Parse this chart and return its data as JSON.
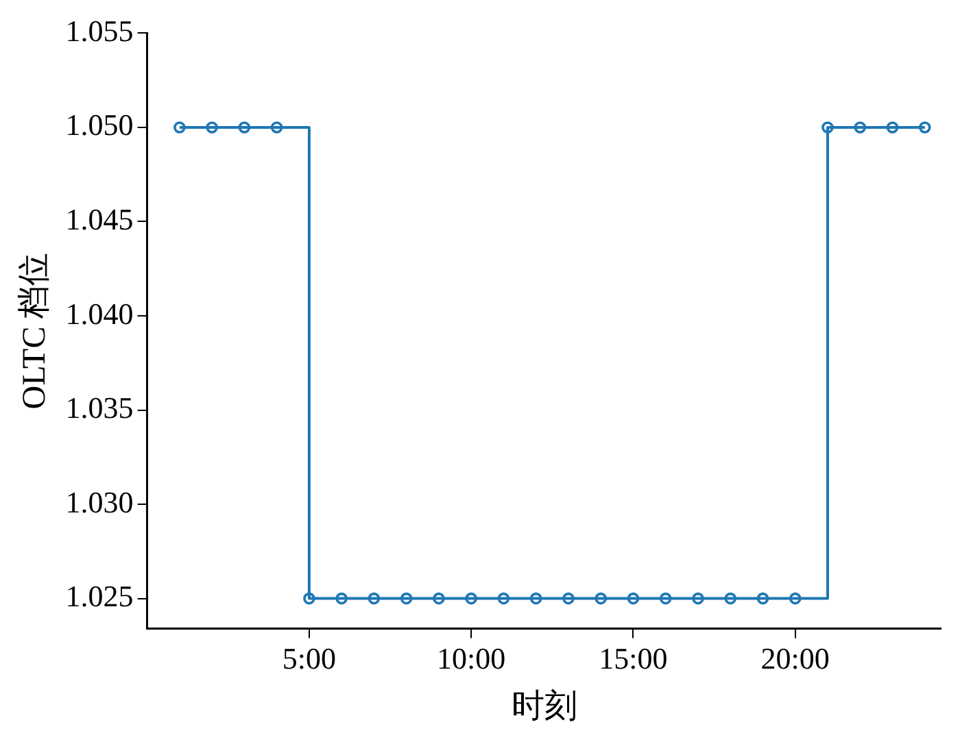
{
  "chart_data": {
    "type": "step",
    "xlabel": "时刻",
    "ylabel": "OLTC 档位",
    "x": [
      1,
      2,
      3,
      4,
      5,
      6,
      7,
      8,
      9,
      10,
      11,
      12,
      13,
      14,
      15,
      16,
      17,
      18,
      19,
      20,
      21,
      22,
      23,
      24
    ],
    "values": [
      1.05,
      1.05,
      1.05,
      1.05,
      1.025,
      1.025,
      1.025,
      1.025,
      1.025,
      1.025,
      1.025,
      1.025,
      1.025,
      1.025,
      1.025,
      1.025,
      1.025,
      1.025,
      1.025,
      1.025,
      1.05,
      1.05,
      1.05,
      1.05
    ],
    "color": "#1f77b4",
    "marker": "circle",
    "line_style": "solid",
    "grid": false,
    "legend": false,
    "xlim": [
      0,
      24.5
    ],
    "xticks": [
      {
        "value": 5,
        "label": "5:00"
      },
      {
        "value": 10,
        "label": "10:00"
      },
      {
        "value": 15,
        "label": "15:00"
      },
      {
        "value": 20,
        "label": "20:00"
      }
    ],
    "ylim": [
      1.0234,
      1.055
    ],
    "yticks": [
      {
        "value": 1.025,
        "label": "1.025"
      },
      {
        "value": 1.03,
        "label": "1.030"
      },
      {
        "value": 1.035,
        "label": "1.035"
      },
      {
        "value": 1.04,
        "label": "1.040"
      },
      {
        "value": 1.045,
        "label": "1.045"
      },
      {
        "value": 1.05,
        "label": "1.050"
      },
      {
        "value": 1.055,
        "label": "1.055"
      }
    ]
  }
}
